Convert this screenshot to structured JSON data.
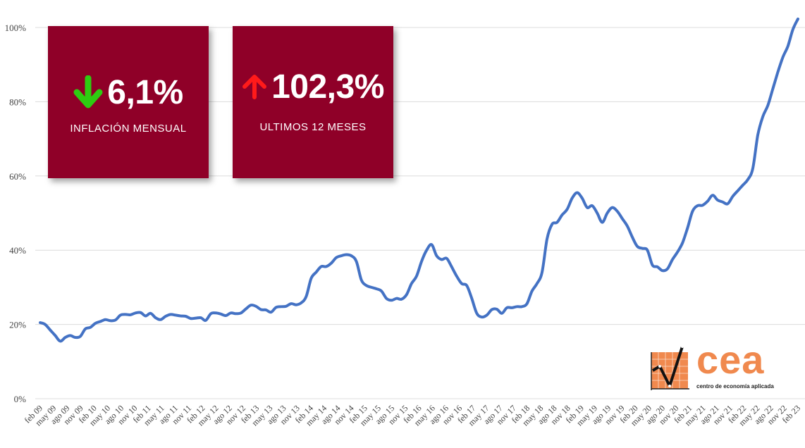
{
  "cards": [
    {
      "value": "6,1%",
      "label": "INFLACIÓN MENSUAL",
      "arrow": "down-arrow-icon",
      "arrow_color": "#2ecc11"
    },
    {
      "value": "102,3%",
      "label": "ULTIMOS 12 MESES",
      "arrow": "up-arrow-icon",
      "arrow_color": "#ff1a1a"
    }
  ],
  "logo": {
    "text": "cea",
    "subtitle": "centro de economía aplicada",
    "color": "#f0894e"
  },
  "chart_data": {
    "type": "line",
    "title": "",
    "xlabel": "",
    "ylabel": "",
    "ylim": [
      0,
      100
    ],
    "yticks": [
      "0%",
      "20%",
      "40%",
      "60%",
      "80%",
      "100%"
    ],
    "grid": true,
    "line_color": "#4472c4",
    "x_ticks": [
      "feb 09",
      "may 09",
      "ago 09",
      "nov 09",
      "feb 10",
      "may 10",
      "ago 10",
      "nov 10",
      "feb 11",
      "may 11",
      "ago 11",
      "nov 11",
      "feb 12",
      "may 12",
      "ago 12",
      "nov 12",
      "feb 13",
      "may 13",
      "ago 13",
      "nov 13",
      "feb 14",
      "may 14",
      "ago 14",
      "nov 14",
      "feb 15",
      "may 15",
      "ago 15",
      "nov 15",
      "feb 16",
      "may 16",
      "ago 16",
      "nov 16",
      "feb 17",
      "may 17",
      "ago 17",
      "nov 17",
      "feb 18",
      "may 18",
      "ago 18",
      "nov 18",
      "feb 19",
      "may 19",
      "ago 19",
      "nov 19",
      "feb 20",
      "may 20",
      "ago 20",
      "nov 20",
      "feb 21",
      "may 21",
      "ago 21",
      "nov 21",
      "feb 22",
      "may 22",
      "ago 22",
      "nov 22",
      "feb 23"
    ],
    "values": [
      20.5,
      20.0,
      18.5,
      17.0,
      15.5,
      16.5,
      17.0,
      16.5,
      16.8,
      18.8,
      19.2,
      20.3,
      20.8,
      21.3,
      21.0,
      21.2,
      22.5,
      22.7,
      22.6,
      23.1,
      23.2,
      22.3,
      23.0,
      21.8,
      21.3,
      22.2,
      22.7,
      22.5,
      22.3,
      22.2,
      21.6,
      21.7,
      21.8,
      21.1,
      22.9,
      23.1,
      22.8,
      22.4,
      23.1,
      22.9,
      23.1,
      24.2,
      25.2,
      24.9,
      24.0,
      23.9,
      23.3,
      24.6,
      24.8,
      24.9,
      25.6,
      25.3,
      25.8,
      27.5,
      32.4,
      34.1,
      35.6,
      35.6,
      36.5,
      38.0,
      38.5,
      38.8,
      38.5,
      37.0,
      32.0,
      30.5,
      30.0,
      29.6,
      29.0,
      27.0,
      26.5,
      27.0,
      26.8,
      28.0,
      31.0,
      33.0,
      37.0,
      40.0,
      41.5,
      38.5,
      37.5,
      37.8,
      35.5,
      33.0,
      31.0,
      30.5,
      27.0,
      23.0,
      22.0,
      22.5,
      24.0,
      24.1,
      23.0,
      24.5,
      24.5,
      24.8,
      24.8,
      25.6,
      29.0,
      31.0,
      34.0,
      43.0,
      47.0,
      47.5,
      49.5,
      51.0,
      54.0,
      55.5,
      54.0,
      51.5,
      52.0,
      50.0,
      47.5,
      50.0,
      51.5,
      50.5,
      48.5,
      46.5,
      43.5,
      41.0,
      40.5,
      40.0,
      36.0,
      35.5,
      34.5,
      35.0,
      37.5,
      39.5,
      42.0,
      46.0,
      50.5,
      52.0,
      52.1,
      53.2,
      54.8,
      53.5,
      53.0,
      52.5,
      54.5,
      56.0,
      57.5,
      59.0,
      62.0,
      71.0,
      76.0,
      79.0,
      83.5,
      88.0,
      92.0,
      95.0,
      99.5,
      102.3
    ]
  }
}
